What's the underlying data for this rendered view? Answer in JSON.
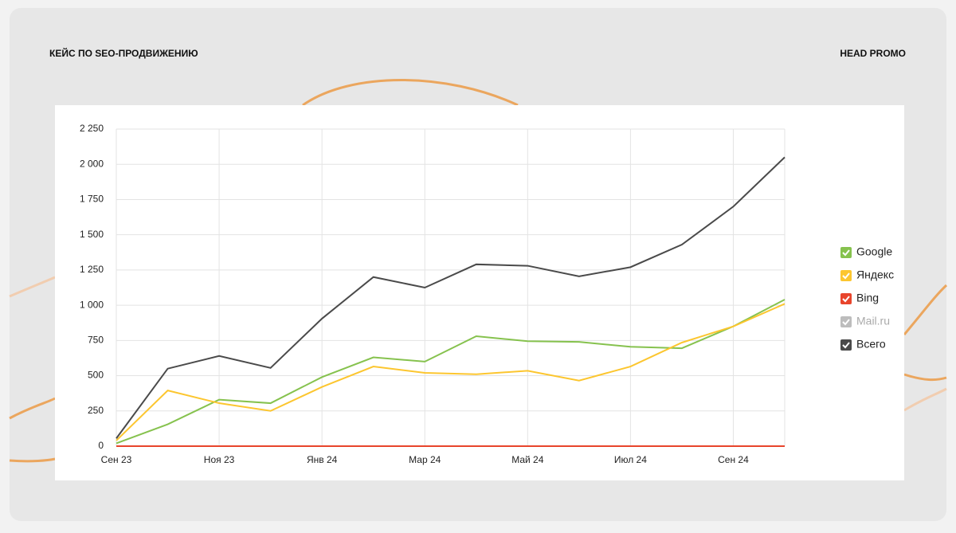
{
  "header": {
    "left": "КЕЙС ПО SEO-ПРОДВИЖЕНИЮ",
    "right": "HEAD PROMO"
  },
  "chart_data": {
    "type": "line",
    "categories": [
      "Сен 23",
      null,
      "Ноя 23",
      null,
      "Янв 24",
      null,
      "Мар 24",
      null,
      "Май 24",
      null,
      "Июл 24",
      null,
      "Сен 24",
      null
    ],
    "series": [
      {
        "name": "Google",
        "color": "#86c24e",
        "checked": true,
        "values": [
          20,
          155,
          330,
          305,
          490,
          630,
          600,
          780,
          745,
          740,
          705,
          695,
          850,
          1040
        ]
      },
      {
        "name": "Яндекс",
        "color": "#fcc62f",
        "checked": true,
        "values": [
          40,
          395,
          305,
          250,
          420,
          565,
          520,
          510,
          535,
          465,
          565,
          735,
          850,
          1010
        ]
      },
      {
        "name": "Bing",
        "color": "#e8452c",
        "checked": true,
        "values": [
          0,
          0,
          0,
          0,
          0,
          0,
          0,
          0,
          0,
          0,
          0,
          0,
          0,
          0
        ]
      },
      {
        "name": "Mail.ru",
        "color": "#bdbdbd",
        "checked": false
      },
      {
        "name": "Всего",
        "color": "#4a4a4a",
        "checked": true,
        "values": [
          55,
          550,
          640,
          555,
          905,
          1200,
          1125,
          1290,
          1280,
          1205,
          1270,
          1430,
          1700,
          2050
        ]
      }
    ],
    "ylim": [
      0,
      2250
    ],
    "yticks": [
      0,
      250,
      500,
      750,
      {
        "value": 1000,
        "label": "1 000"
      },
      {
        "value": 1250,
        "label": "1 250"
      },
      {
        "value": 1500,
        "label": "1 500"
      },
      {
        "value": 1750,
        "label": "1 750"
      },
      {
        "value": 2000,
        "label": "2 000"
      },
      {
        "value": 2250,
        "label": "2 250"
      }
    ],
    "grid": true
  }
}
